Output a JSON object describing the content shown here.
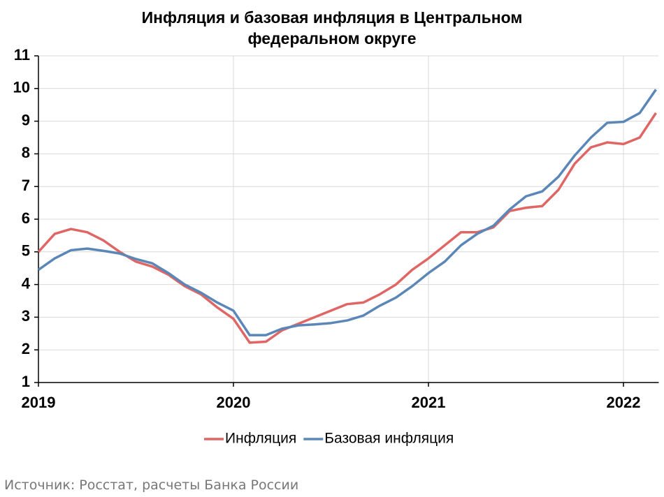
{
  "chart_data": {
    "type": "line",
    "title": "Инфляция и базовая инфляция в Центральном федеральном округе",
    "source": "Источник: Росстат, расчеты Банка России",
    "categories": [
      "2019",
      null,
      null,
      null,
      null,
      null,
      null,
      null,
      null,
      null,
      null,
      null,
      "2020",
      null,
      null,
      null,
      null,
      null,
      null,
      null,
      null,
      null,
      null,
      null,
      "2021",
      null,
      null,
      null,
      null,
      null,
      null,
      null,
      null,
      null,
      null,
      null,
      "2022",
      null,
      null
    ],
    "series": [
      {
        "name": "Инфляция",
        "color": "#e06666",
        "values": [
          5.0,
          5.55,
          5.7,
          5.6,
          5.35,
          5.0,
          4.7,
          4.55,
          4.3,
          3.95,
          3.7,
          3.3,
          2.95,
          2.22,
          2.25,
          2.6,
          2.8,
          3.0,
          3.2,
          3.4,
          3.45,
          3.7,
          4.0,
          4.45,
          4.8,
          5.2,
          5.6,
          5.6,
          5.75,
          6.25,
          6.35,
          6.4,
          6.9,
          7.7,
          8.2,
          8.35,
          8.3,
          8.5,
          9.25
        ]
      },
      {
        "name": "Базовая инфляция",
        "color": "#5b87b8",
        "values": [
          4.45,
          4.8,
          5.05,
          5.1,
          5.03,
          4.95,
          4.78,
          4.65,
          4.35,
          4.0,
          3.75,
          3.45,
          3.2,
          2.45,
          2.45,
          2.65,
          2.75,
          2.78,
          2.82,
          2.9,
          3.05,
          3.35,
          3.6,
          3.95,
          4.35,
          4.7,
          5.2,
          5.55,
          5.8,
          6.3,
          6.7,
          6.85,
          7.3,
          7.95,
          8.5,
          8.95,
          8.98,
          9.25,
          9.97
        ]
      }
    ],
    "ylim": [
      1,
      11
    ],
    "yticks": [
      1,
      2,
      3,
      4,
      5,
      6,
      7,
      8,
      9,
      10,
      11
    ],
    "grid": true,
    "legend": "bottom"
  }
}
